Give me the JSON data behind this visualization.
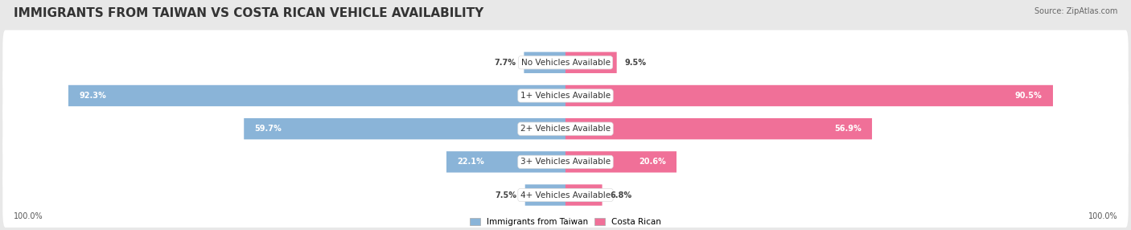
{
  "title": "IMMIGRANTS FROM TAIWAN VS COSTA RICAN VEHICLE AVAILABILITY",
  "source": "Source: ZipAtlas.com",
  "categories": [
    "No Vehicles Available",
    "1+ Vehicles Available",
    "2+ Vehicles Available",
    "3+ Vehicles Available",
    "4+ Vehicles Available"
  ],
  "taiwan_values": [
    7.7,
    92.3,
    59.7,
    22.1,
    7.5
  ],
  "costarican_values": [
    9.5,
    90.5,
    56.9,
    20.6,
    6.8
  ],
  "taiwan_color": "#8ab4d8",
  "costarican_color": "#f07098",
  "taiwan_color_light": "#aecce8",
  "costarican_color_light": "#f5a0bc",
  "background_color": "#e8e8e8",
  "row_bg_even": "#f5f5f5",
  "row_bg_odd": "#ebebeb",
  "legend_taiwan": "Immigrants from Taiwan",
  "legend_costarican": "Costa Rican",
  "title_fontsize": 11,
  "source_fontsize": 7,
  "bar_label_fontsize": 7,
  "cat_label_fontsize": 7.5
}
